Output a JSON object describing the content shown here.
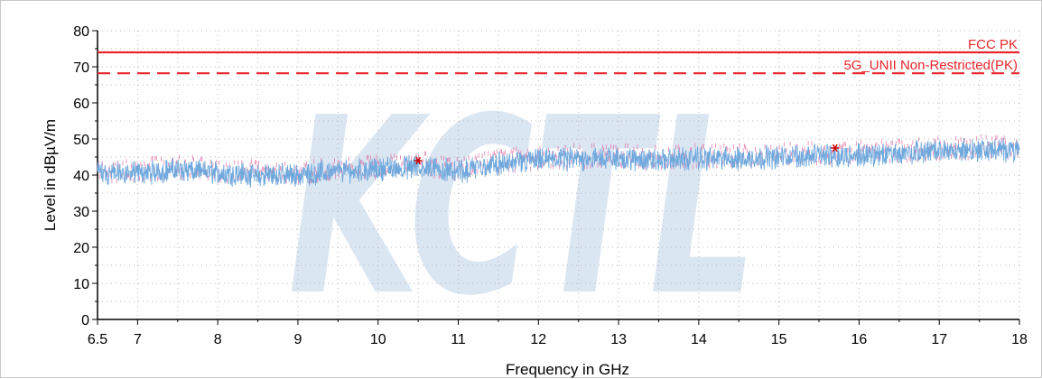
{
  "chart_data": {
    "type": "line",
    "xlabel": "Frequency in GHz",
    "ylabel": "Level in dBµV/m",
    "xlim": [
      6.5,
      18
    ],
    "ylim": [
      0,
      80
    ],
    "x_ticks": [
      6.5,
      7,
      8,
      9,
      10,
      11,
      12,
      13,
      14,
      15,
      16,
      17,
      18
    ],
    "x_tick_labels": [
      "6.5",
      "7",
      "8",
      "9",
      "10",
      "11",
      "12",
      "13",
      "14",
      "15",
      "16",
      "17",
      "18"
    ],
    "y_ticks": [
      0,
      10,
      20,
      30,
      40,
      50,
      60,
      70,
      80
    ],
    "y_tick_labels": [
      "0",
      "10",
      "20",
      "30",
      "40",
      "50",
      "60",
      "70",
      "80"
    ],
    "grid": true,
    "watermark": "KCTL",
    "limit_lines": [
      {
        "name": "FCC PK",
        "value": 74,
        "style": "solid",
        "color": "#e8262d"
      },
      {
        "name": "5G_UNII Non-Restricted(PK)",
        "value": 68.2,
        "style": "dashed",
        "color": "#e8262d"
      }
    ],
    "series": [
      {
        "color": "#6fa8dc",
        "x": [
          6.5,
          7,
          7.5,
          8,
          8.5,
          9,
          9.5,
          10,
          10.5,
          11,
          11.5,
          12,
          12.5,
          13,
          13.5,
          14,
          14.5,
          15,
          15.5,
          16,
          16.5,
          17,
          17.5,
          18
        ],
        "values": [
          40.5,
          40.5,
          41.5,
          40.5,
          40,
          40,
          41,
          41.5,
          42.5,
          41,
          43,
          44,
          44.5,
          44.5,
          44,
          44.5,
          44.5,
          45,
          45.5,
          45.5,
          46,
          46.5,
          47,
          47
        ]
      }
    ],
    "markers": [
      {
        "x": 10.5,
        "y": 44,
        "color": "#cc0000"
      },
      {
        "x": 15.7,
        "y": 47.5,
        "color": "#cc0000"
      }
    ]
  }
}
